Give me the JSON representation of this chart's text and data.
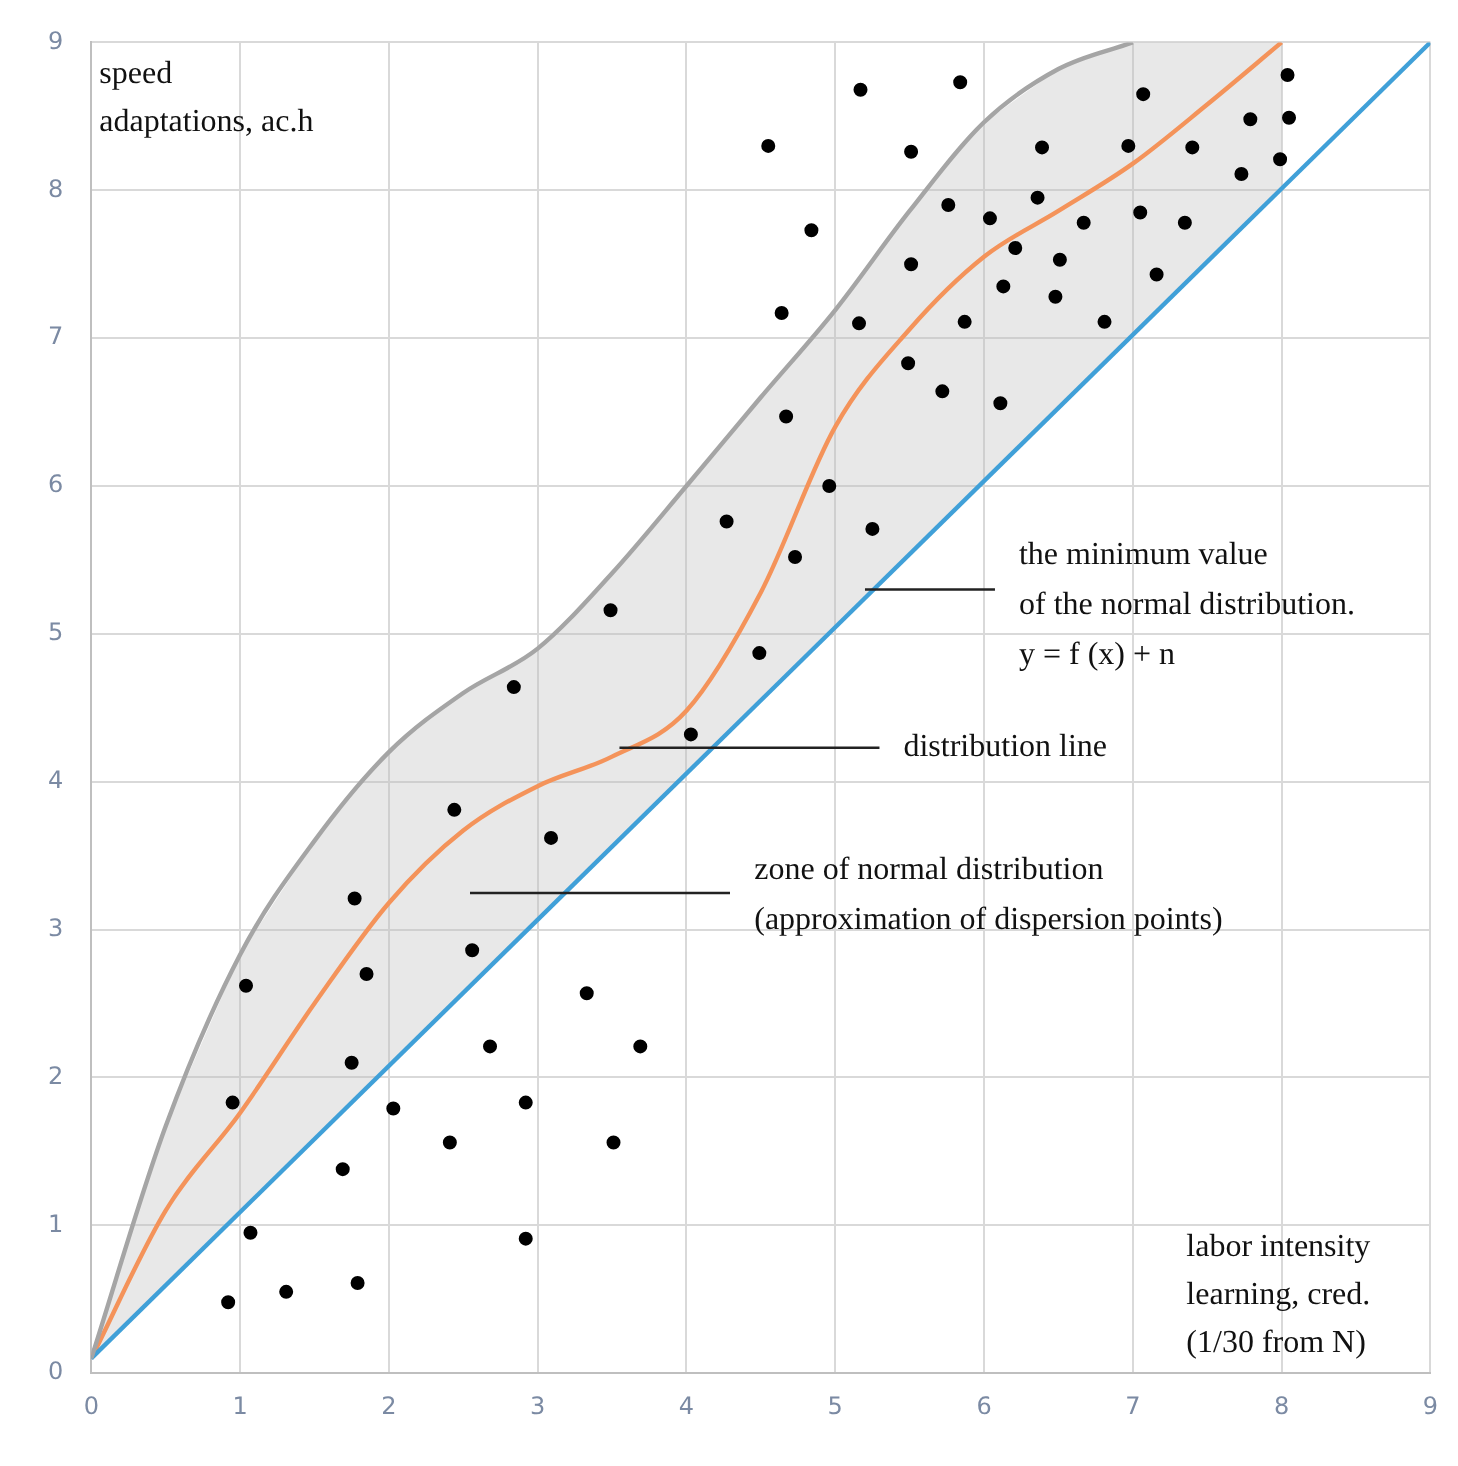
{
  "chart_data": {
    "type": "scatter",
    "xlabel": "labor intensity\nlearning, cred.\n(1/30 from N)",
    "ylabel": "speed\nadaptations, ac.h",
    "xlim": [
      0,
      9
    ],
    "ylim": [
      0,
      9
    ],
    "xticks": [
      0,
      1,
      2,
      3,
      4,
      5,
      6,
      7,
      8,
      9
    ],
    "yticks": [
      0,
      1,
      2,
      3,
      4,
      5,
      6,
      7,
      8,
      9
    ],
    "grid": true,
    "legend": false,
    "series": [
      {
        "type": "line",
        "color": "#a5a5a5",
        "marker": "none",
        "x": [
          0,
          0.5,
          1,
          1.5,
          2,
          2.5,
          3,
          3.5,
          4,
          4.5,
          5,
          5.5,
          6,
          6.5,
          7
        ],
        "values": [
          0.1,
          1.67,
          2.83,
          3.6,
          4.2,
          4.6,
          4.9,
          5.41,
          6.0,
          6.6,
          7.19,
          7.86,
          8.46,
          8.82,
          9.0
        ]
      },
      {
        "type": "line",
        "color": "#40a0d8",
        "marker": "none",
        "x": [
          0,
          9
        ],
        "values": [
          0.1,
          9
        ]
      },
      {
        "type": "line",
        "color": "#f4935a",
        "marker": "none",
        "x": [
          0,
          0.5,
          1,
          1.5,
          2,
          2.5,
          3,
          3.5,
          4,
          4.5,
          5,
          5.5,
          6,
          6.5,
          7,
          7.5,
          8
        ],
        "values": [
          0.1,
          1.1,
          1.76,
          2.5,
          3.18,
          3.67,
          3.97,
          4.17,
          4.48,
          5.28,
          6.4,
          7.06,
          7.55,
          7.86,
          8.18,
          8.58,
          9.0
        ],
        "lower": [
          0.1,
          0.59,
          1.09,
          1.58,
          2.08,
          2.57,
          3.07,
          3.56,
          4.06,
          4.55,
          5.05,
          5.54,
          6.03,
          6.53,
          7.02,
          7.52,
          8.01
        ],
        "upper": [
          0.1,
          1.67,
          2.83,
          3.6,
          4.2,
          4.6,
          4.9,
          5.41,
          6.0,
          6.6,
          7.19,
          7.86,
          8.46,
          8.82,
          9.0,
          9.0,
          9.0
        ]
      },
      {
        "type": "scatter",
        "color": "#000000",
        "marker": "circle",
        "x": [
          0.92,
          0.95,
          1.04,
          1.07,
          1.31,
          1.69,
          1.75,
          1.77,
          1.79,
          1.85,
          2.03,
          2.41,
          2.44,
          2.56,
          2.68,
          2.84,
          2.92,
          2.92,
          3.09,
          3.33,
          3.49,
          3.51,
          3.69,
          4.03,
          4.27,
          4.49,
          4.55,
          4.64,
          4.67,
          4.73,
          4.84,
          4.96,
          5.16,
          5.17,
          5.25,
          5.49,
          5.51,
          5.51,
          5.72,
          5.76,
          5.84,
          5.87,
          6.04,
          6.11,
          6.13,
          6.21,
          6.36,
          6.39,
          6.48,
          6.51,
          6.67,
          6.81,
          6.97,
          7.05,
          7.07,
          7.16,
          7.35,
          7.4,
          7.73,
          7.79,
          7.99,
          8.04,
          8.05
        ],
        "values": [
          0.48,
          1.83,
          2.62,
          0.95,
          0.55,
          1.38,
          2.1,
          3.21,
          0.61,
          2.7,
          1.79,
          1.56,
          3.81,
          2.86,
          2.21,
          4.64,
          1.83,
          0.91,
          3.62,
          2.57,
          5.16,
          1.56,
          2.21,
          4.32,
          5.76,
          4.87,
          8.3,
          7.17,
          6.47,
          5.52,
          7.73,
          6.0,
          7.1,
          8.68,
          5.71,
          6.83,
          7.5,
          8.26,
          6.64,
          7.9,
          8.73,
          7.11,
          7.81,
          6.56,
          7.35,
          7.61,
          7.95,
          8.29,
          7.28,
          7.53,
          7.78,
          7.11,
          8.3,
          7.85,
          8.65,
          7.43,
          7.78,
          8.29,
          8.11,
          8.48,
          8.21,
          8.78,
          8.49
        ]
      }
    ],
    "annotations": [
      {
        "text": "the minimum value\nof the normal distribution.\ny = f (x) + n",
        "x": 5.2,
        "y": 5.3
      },
      {
        "text": "distribution line",
        "x": 3.55,
        "y": 4.23
      },
      "zone of normal distribution\n(approximation of dispersion points)"
    ]
  }
}
